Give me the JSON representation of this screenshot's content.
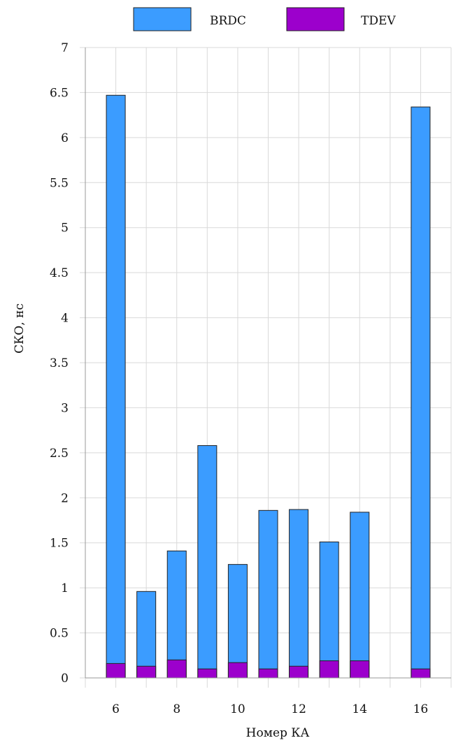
{
  "chart_data": {
    "type": "bar",
    "stacked": false,
    "overlay": true,
    "xlabel": "Номер КА",
    "ylabel": "СКО, нс",
    "x": [
      6,
      7,
      8,
      9,
      10,
      11,
      12,
      13,
      14,
      16
    ],
    "xlim": [
      5,
      17
    ],
    "xticks": [
      6,
      8,
      10,
      12,
      14,
      16
    ],
    "ylim": [
      0,
      7
    ],
    "yticks": [
      0,
      0.5,
      1,
      1.5,
      2,
      2.5,
      3,
      3.5,
      4,
      4.5,
      5,
      5.5,
      6,
      6.5,
      7
    ],
    "grid": true,
    "legend": "top-center",
    "series": [
      {
        "name": "BRDC",
        "color": "#3b9cff",
        "values": [
          6.47,
          0.96,
          1.41,
          2.58,
          1.26,
          1.86,
          1.87,
          1.51,
          1.84,
          6.34
        ]
      },
      {
        "name": "TDEV",
        "color": "#9c00cc",
        "values": [
          0.16,
          0.13,
          0.2,
          0.1,
          0.17,
          0.1,
          0.13,
          0.19,
          0.19,
          0.1
        ]
      }
    ]
  }
}
